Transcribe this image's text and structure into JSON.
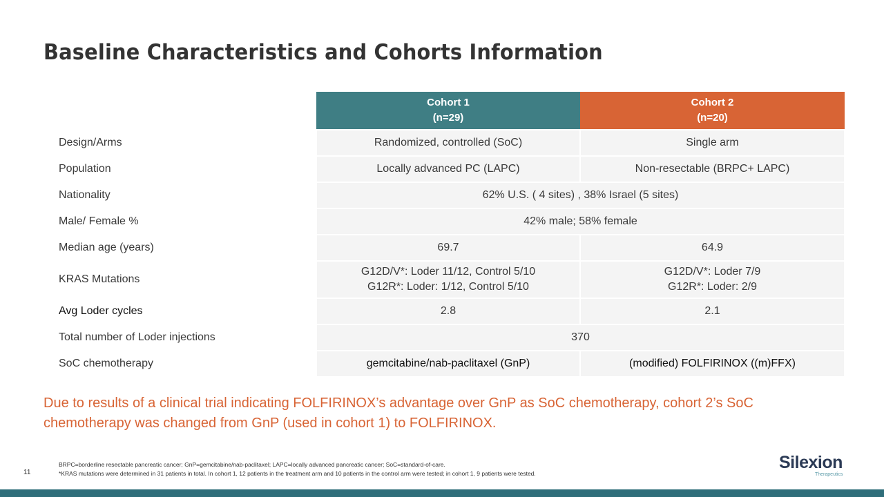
{
  "title": "Baseline Characteristics and Cohorts Information",
  "table": {
    "headers": [
      {
        "line1": "Cohort 1",
        "line2": "(n=29)",
        "color": "#3f7e84"
      },
      {
        "line1": "Cohort 2",
        "line2": "(n=20)",
        "color": "#d86435"
      }
    ],
    "rows": [
      {
        "label": "Design/Arms",
        "c1": "Randomized, controlled (SoC)",
        "c2": "Single arm"
      },
      {
        "label": "Population",
        "c1": "Locally advanced PC (LAPC)",
        "c2": "Non-resectable (BRPC+ LAPC)"
      },
      {
        "label": "Nationality",
        "merged": "62% U.S. ( 4 sites) , 38% Israel  (5 sites)"
      },
      {
        "label": "Male/ Female %",
        "merged": "42% male; 58% female"
      },
      {
        "label": "Median age (years)",
        "c1": "69.7",
        "c2": "64.9"
      },
      {
        "label": "KRAS Mutations",
        "c1_line1": "G12D/V*: Loder 11/12, Control 5/10",
        "c1_line2": "G12R*: Loder: 1/12, Control 5/10",
        "c2_line1": "G12D/V*: Loder 7/9",
        "c2_line2": "G12R*: Loder: 2/9"
      },
      {
        "label": "Avg Loder cycles",
        "c1": "2.8",
        "c2": "2.1"
      },
      {
        "label": "Total number of Loder injections",
        "merged": "370"
      },
      {
        "label": "SoC chemotherapy",
        "c1": "gemcitabine/nab-paclitaxel (GnP)",
        "c2": "(modified) FOLFIRINOX ((m)FFX)"
      }
    ]
  },
  "note": "Due to results of a clinical trial indicating FOLFIRINOX’s  advantage over GnP as SoC chemotherapy,  cohort 2’s SoC chemotherapy was changed from GnP (used in cohort 1) to FOLFIRINOX.",
  "footnotes": {
    "line1": "BRPC=borderline resectable pancreatic cancer; GnP=gemcitabine/nab-paclitaxel;  LAPC=locally advanced pancreatic cancer; SoC=standard-of-care.",
    "line2": "*KRAS mutations were determined in 31 patients in total. In cohort 1, 12 patients in the treatment arm and 10 patients in the control arm were tested; in cohort 1, 9 patients were tested."
  },
  "page_number": "11",
  "logo": {
    "word": "Silexion",
    "subtitle": "Therapeutics"
  },
  "colors": {
    "accent_teal": "#3f7e84",
    "accent_orange": "#d86435",
    "bar": "#2f6e7a"
  }
}
